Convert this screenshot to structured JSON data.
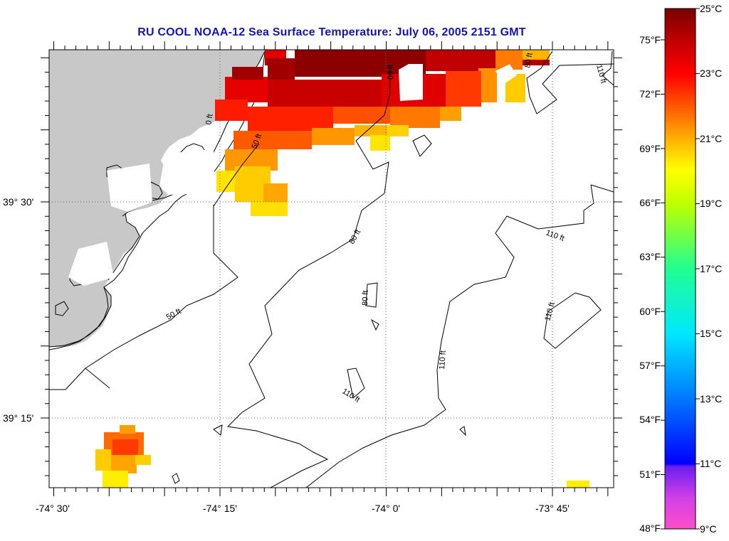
{
  "title": "RU COOL  NOAA-12  Sea Surface Temperature:  July 06, 2005 2151 GMT",
  "map": {
    "lon_labels": [
      "-74° 30'",
      "-74° 15'",
      "-74° 0'",
      "-73° 45'"
    ],
    "lat_labels": [
      "39° 30'",
      "39° 15'"
    ],
    "depth_labels": [
      "0 ft",
      "50 ft",
      "50 ft",
      "80 ft",
      "80 ft",
      "80 ft",
      "80 ft",
      "110 ft",
      "110 ft",
      "110 ft",
      "110 ft",
      "110 ft"
    ],
    "colors": {
      "land": "#c8c8c8",
      "cloud": "#ffffff",
      "graticule": "#666666"
    }
  },
  "colorbar": {
    "celsius_labels": [
      "25°C",
      "23°C",
      "21°C",
      "19°C",
      "17°C",
      "15°C",
      "13°C",
      "11°C",
      "9°C"
    ],
    "fahrenheit_labels": [
      "75°F",
      "72°F",
      "69°F",
      "66°F",
      "63°F",
      "60°F",
      "57°F",
      "54°F",
      "51°F",
      "48°F"
    ],
    "range_c": [
      9,
      25
    ]
  }
}
